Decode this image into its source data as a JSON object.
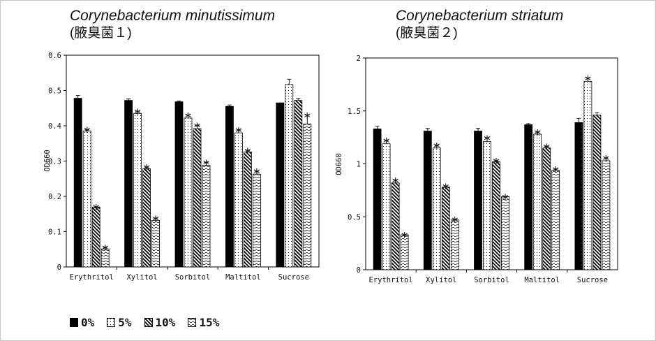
{
  "chart_data": [
    {
      "type": "bar",
      "title": "Corynebacterium minutissimum",
      "subtitle": "(腋臭菌１)",
      "ylabel": "OD660",
      "ylim": [
        0,
        0.6
      ],
      "yticks": [
        "0",
        "0.1",
        "0.2",
        "0.3",
        "0.4",
        "0.5",
        "0.6"
      ],
      "categories": [
        "Erythritol",
        "Xylitol",
        "Sorbitol",
        "Maltitol",
        "Sucrose"
      ],
      "series": [
        {
          "name": "0%",
          "values": [
            0.478,
            0.472,
            0.468,
            0.455,
            0.465
          ],
          "errors": [
            0.008,
            0.004,
            0.002,
            0.004,
            0
          ],
          "significant": [
            false,
            false,
            false,
            false,
            false
          ]
        },
        {
          "name": "5%",
          "values": [
            0.385,
            0.435,
            0.422,
            0.38,
            0.517
          ],
          "errors": [
            0.004,
            0.006,
            0.008,
            0.008,
            0.015
          ],
          "significant": [
            true,
            true,
            true,
            true,
            false
          ]
        },
        {
          "name": "10%",
          "values": [
            0.17,
            0.278,
            0.392,
            0.326,
            0.472
          ],
          "errors": [
            0,
            0.005,
            0.009,
            0.004,
            0.005
          ],
          "significant": [
            true,
            true,
            true,
            true,
            false
          ]
        },
        {
          "name": "15%",
          "values": [
            0.051,
            0.132,
            0.288,
            0.263,
            0.405
          ],
          "errors": [
            0.004,
            0.006,
            0.008,
            0.008,
            0.025
          ],
          "significant": [
            true,
            true,
            true,
            true,
            true
          ]
        }
      ],
      "significance_marker": "*",
      "grid": false,
      "legend": "bottom"
    },
    {
      "type": "bar",
      "title": "Corynebacterium striatum",
      "subtitle": "(腋臭菌２)",
      "ylabel": "OD660",
      "ylim": [
        0,
        2
      ],
      "yticks": [
        "0",
        "0.5",
        "1",
        "1.5",
        "2"
      ],
      "categories": [
        "Erythritol",
        "Xylitol",
        "Sorbitol",
        "Maltitol",
        "Sucrose"
      ],
      "series": [
        {
          "name": "0%",
          "values": [
            1.33,
            1.31,
            1.31,
            1.37,
            1.39
          ],
          "errors": [
            0.025,
            0.025,
            0.025,
            0.01,
            0.04
          ],
          "significant": [
            false,
            false,
            false,
            false,
            false
          ]
        },
        {
          "name": "5%",
          "values": [
            1.19,
            1.15,
            1.21,
            1.28,
            1.78
          ],
          "errors": [
            0.03,
            0.025,
            0.035,
            0.02,
            0.03
          ],
          "significant": [
            true,
            true,
            true,
            true,
            true
          ]
        },
        {
          "name": "10%",
          "values": [
            0.82,
            0.78,
            1.02,
            1.15,
            1.46
          ],
          "errors": [
            0.025,
            0.01,
            0.01,
            0.015,
            0.025
          ],
          "significant": [
            true,
            true,
            true,
            true,
            false
          ]
        },
        {
          "name": "15%",
          "values": [
            0.33,
            0.47,
            0.69,
            0.94,
            1.03
          ],
          "errors": [
            0,
            0.005,
            0,
            0.01,
            0.025
          ],
          "significant": [
            true,
            true,
            true,
            true,
            true
          ]
        }
      ],
      "significance_marker": "*",
      "grid": false,
      "legend": "bottom"
    }
  ],
  "legend": {
    "items": [
      {
        "label": "0%",
        "pattern": "solid"
      },
      {
        "label": "5%",
        "pattern": "dots"
      },
      {
        "label": "10%",
        "pattern": "diagonal"
      },
      {
        "label": "15%",
        "pattern": "waves"
      }
    ]
  },
  "colors": {
    "bar_fill": "#000000",
    "bar_stroke": "#000000",
    "background": "#ffffff",
    "frame": "#c8c8c8"
  }
}
